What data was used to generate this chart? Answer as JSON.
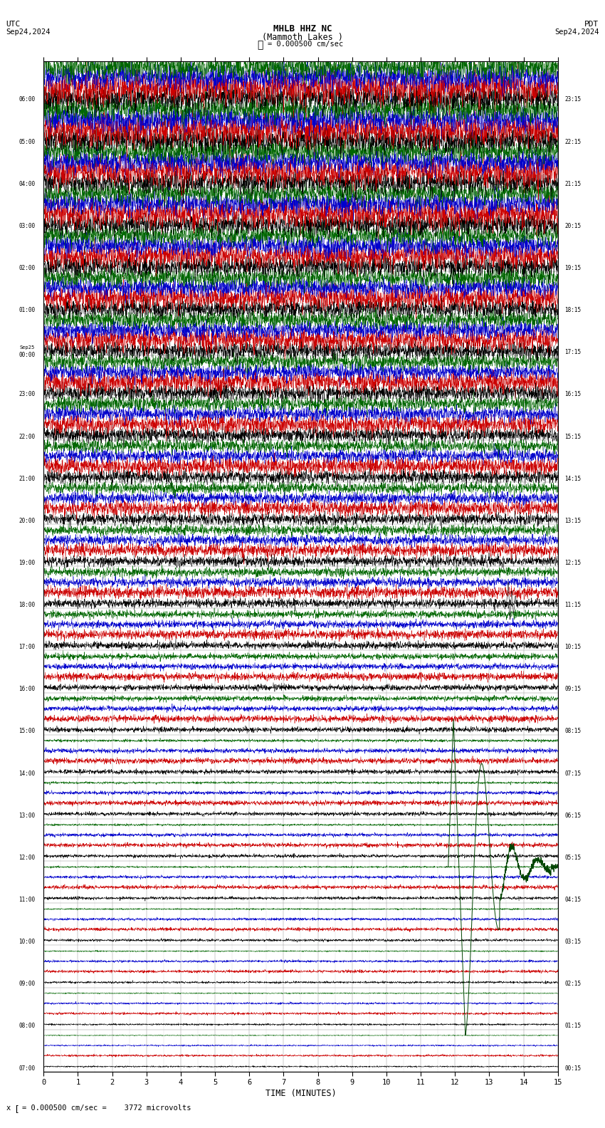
{
  "title_line1": "MHLB HHZ NC",
  "title_line2": "(Mammoth Lakes )",
  "scale_label": "= 0.000500 cm/sec",
  "utc_label": "UTC",
  "pdt_label": "PDT",
  "date_left": "Sep24,2024",
  "date_right": "Sep24,2024",
  "bottom_note": "= 0.000500 cm/sec =    3772 microvolts",
  "xlabel": "TIME (MINUTES)",
  "bg_color": "#ffffff",
  "colors": [
    "#000000",
    "#cc0000",
    "#0000cc",
    "#006600"
  ],
  "n_rows": 24,
  "n_traces_per_row": 4,
  "minutes_per_row": 15,
  "utc_start_labels": [
    "07:00",
    "08:00",
    "09:00",
    "10:00",
    "11:00",
    "12:00",
    "13:00",
    "14:00",
    "15:00",
    "16:00",
    "17:00",
    "18:00",
    "19:00",
    "20:00",
    "21:00",
    "22:00",
    "23:00",
    "Sep25\n00:00",
    "01:00",
    "02:00",
    "03:00",
    "04:00",
    "05:00",
    "06:00"
  ],
  "pdt_start_labels": [
    "00:15",
    "01:15",
    "02:15",
    "03:15",
    "04:15",
    "05:15",
    "06:15",
    "07:15",
    "08:15",
    "09:15",
    "10:15",
    "11:15",
    "12:15",
    "13:15",
    "14:15",
    "15:15",
    "16:15",
    "17:15",
    "18:15",
    "19:15",
    "20:15",
    "21:15",
    "22:15",
    "23:15"
  ],
  "noise_seed": 42,
  "figsize": [
    8.5,
    15.84
  ],
  "dpi": 100
}
